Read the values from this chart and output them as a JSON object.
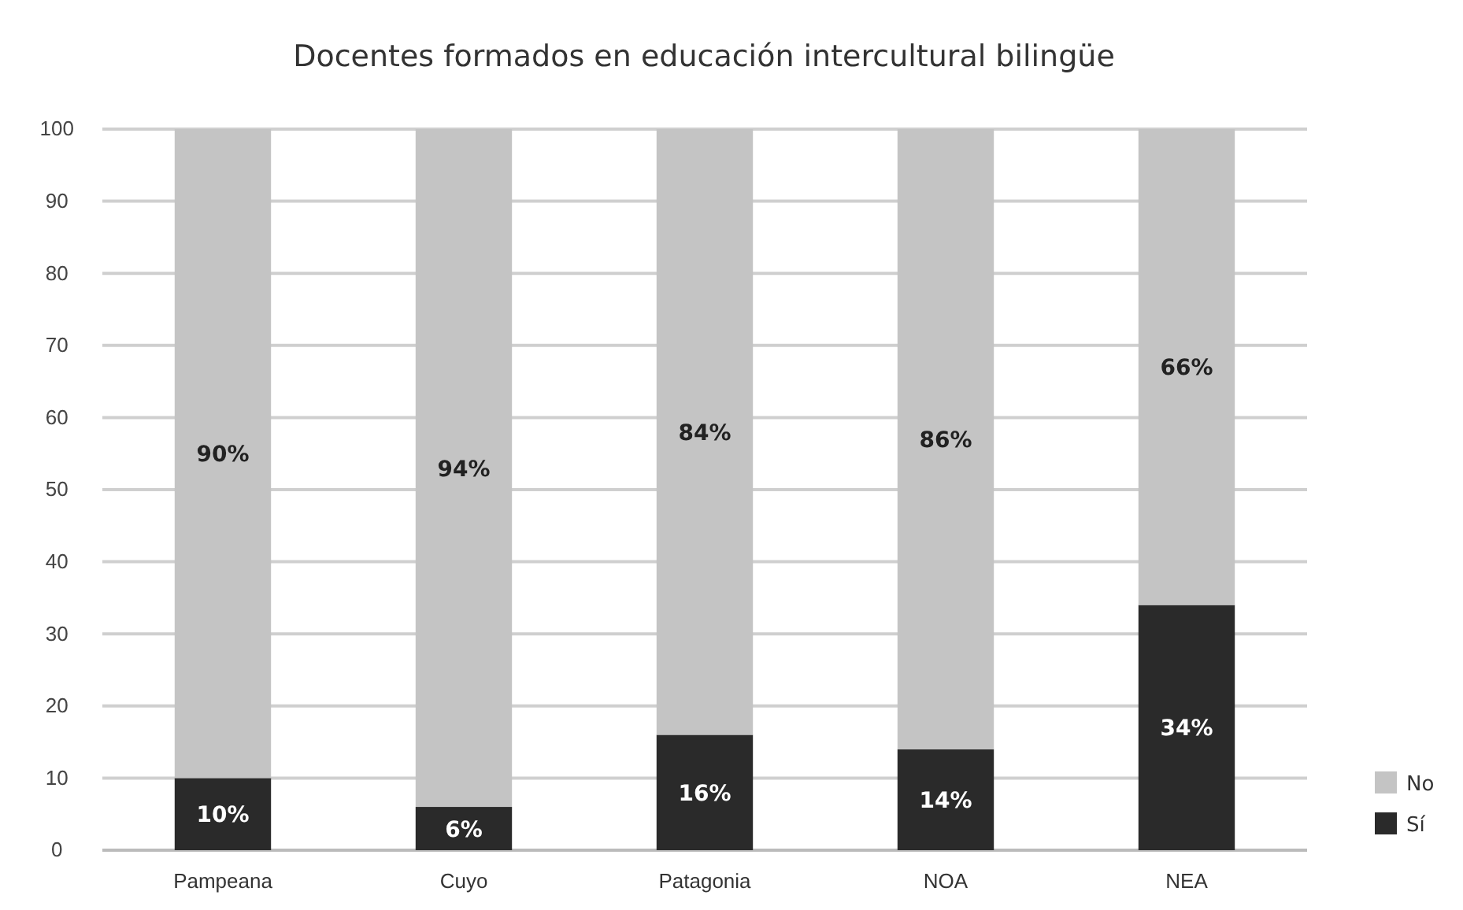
{
  "chart_data": {
    "type": "bar",
    "title": "Docentes formados en educación intercultural bilingüe",
    "categories": [
      "Pampeana",
      "Cuyo",
      "Patagonia",
      "NOA",
      "NEA"
    ],
    "stacked": true,
    "series": [
      {
        "name": "Sí",
        "color": "#2a2a2a",
        "values": [
          10,
          6,
          16,
          14,
          34
        ],
        "value_labels": [
          "10%",
          "6%",
          "16%",
          "14%",
          "34%"
        ]
      },
      {
        "name": "No",
        "color": "#c4c4c4",
        "values": [
          90,
          94,
          84,
          86,
          66
        ],
        "value_labels": [
          "90%",
          "94%",
          "84%",
          "86%",
          "66%"
        ]
      }
    ],
    "ylim": [
      0,
      100
    ],
    "yticks": [
      0,
      10,
      20,
      30,
      40,
      50,
      60,
      70,
      80,
      90,
      100
    ],
    "grid": "y",
    "legend": "bottom right"
  }
}
